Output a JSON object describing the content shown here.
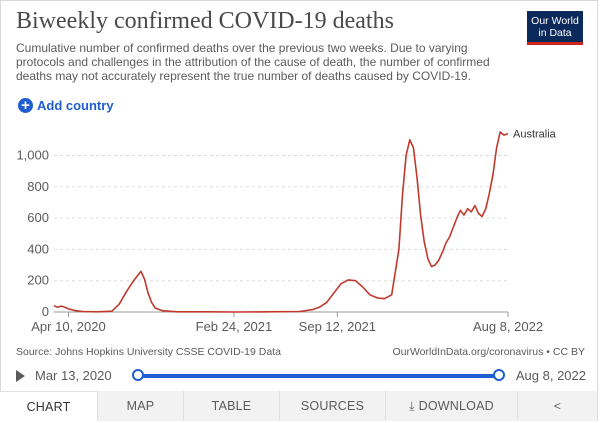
{
  "header": {
    "title": "Biweekly confirmed COVID-19 deaths",
    "subtitle": "Cumulative number of confirmed deaths over the previous two weeks. Due to varying protocols and challenges in the attribution of the cause of death, the number of confirmed deaths may not accurately represent the true number of deaths caused by COVID-19.",
    "logo_line1": "Our World",
    "logo_line2": "in Data"
  },
  "controls": {
    "add_country_label": "Add country"
  },
  "chart_data": {
    "type": "line",
    "title": "Biweekly confirmed COVID-19 deaths",
    "xlabel": "",
    "ylabel": "",
    "ylim": [
      0,
      1150
    ],
    "y_ticks": [
      0,
      200,
      400,
      600,
      800,
      1000
    ],
    "y_tick_labels": [
      "0",
      "200",
      "400",
      "600",
      "800",
      "1,000"
    ],
    "x_range": [
      "2020-03-13",
      "2022-08-08"
    ],
    "x_ticks": [
      "2020-04-10",
      "2021-02-24",
      "2021-09-12",
      "2022-08-08"
    ],
    "x_tick_labels": [
      "Apr 10, 2020",
      "Feb 24, 2021",
      "Sep 12, 2021",
      "Aug 8, 2022"
    ],
    "grid": "horizontal dashed",
    "series": [
      {
        "name": "Australia",
        "color": "#c0392b",
        "points": [
          [
            "2020-03-13",
            40
          ],
          [
            "2020-03-20",
            30
          ],
          [
            "2020-03-27",
            38
          ],
          [
            "2020-04-03",
            30
          ],
          [
            "2020-04-10",
            20
          ],
          [
            "2020-04-24",
            8
          ],
          [
            "2020-05-08",
            3
          ],
          [
            "2020-06-05",
            1
          ],
          [
            "2020-07-03",
            5
          ],
          [
            "2020-07-17",
            50
          ],
          [
            "2020-07-31",
            130
          ],
          [
            "2020-08-14",
            200
          ],
          [
            "2020-08-21",
            230
          ],
          [
            "2020-08-28",
            260
          ],
          [
            "2020-09-04",
            210
          ],
          [
            "2020-09-11",
            120
          ],
          [
            "2020-09-18",
            60
          ],
          [
            "2020-09-25",
            25
          ],
          [
            "2020-10-09",
            8
          ],
          [
            "2020-11-06",
            1
          ],
          [
            "2021-01-01",
            1
          ],
          [
            "2021-03-01",
            0
          ],
          [
            "2021-05-01",
            1
          ],
          [
            "2021-07-01",
            3
          ],
          [
            "2021-07-25",
            15
          ],
          [
            "2021-08-08",
            30
          ],
          [
            "2021-08-22",
            60
          ],
          [
            "2021-09-05",
            120
          ],
          [
            "2021-09-19",
            180
          ],
          [
            "2021-10-03",
            205
          ],
          [
            "2021-10-17",
            200
          ],
          [
            "2021-10-31",
            160
          ],
          [
            "2021-11-14",
            110
          ],
          [
            "2021-11-28",
            90
          ],
          [
            "2021-12-12",
            85
          ],
          [
            "2021-12-26",
            110
          ],
          [
            "2022-01-09",
            400
          ],
          [
            "2022-01-16",
            750
          ],
          [
            "2022-01-23",
            1000
          ],
          [
            "2022-01-30",
            1100
          ],
          [
            "2022-02-06",
            1050
          ],
          [
            "2022-02-13",
            860
          ],
          [
            "2022-02-20",
            620
          ],
          [
            "2022-02-27",
            450
          ],
          [
            "2022-03-06",
            340
          ],
          [
            "2022-03-13",
            290
          ],
          [
            "2022-03-20",
            300
          ],
          [
            "2022-03-27",
            330
          ],
          [
            "2022-04-03",
            380
          ],
          [
            "2022-04-10",
            440
          ],
          [
            "2022-04-17",
            480
          ],
          [
            "2022-04-24",
            540
          ],
          [
            "2022-05-01",
            600
          ],
          [
            "2022-05-08",
            650
          ],
          [
            "2022-05-15",
            620
          ],
          [
            "2022-05-22",
            660
          ],
          [
            "2022-05-29",
            640
          ],
          [
            "2022-06-05",
            680
          ],
          [
            "2022-06-12",
            630
          ],
          [
            "2022-06-19",
            610
          ],
          [
            "2022-06-26",
            660
          ],
          [
            "2022-07-03",
            760
          ],
          [
            "2022-07-10",
            880
          ],
          [
            "2022-07-17",
            1050
          ],
          [
            "2022-07-24",
            1150
          ],
          [
            "2022-07-31",
            1130
          ],
          [
            "2022-08-08",
            1140
          ]
        ]
      }
    ]
  },
  "footer": {
    "source": "Source: Johns Hopkins University CSSE COVID-19 Data",
    "credit": "OurWorldInData.org/coronavirus • CC BY"
  },
  "timeline": {
    "start_label": "Mar 13, 2020",
    "end_label": "Aug 8, 2022"
  },
  "tabs": [
    {
      "label": "CHART"
    },
    {
      "label": "MAP"
    },
    {
      "label": "TABLE"
    },
    {
      "label": "SOURCES"
    },
    {
      "label": "DOWNLOAD"
    },
    {
      "label": ""
    }
  ]
}
